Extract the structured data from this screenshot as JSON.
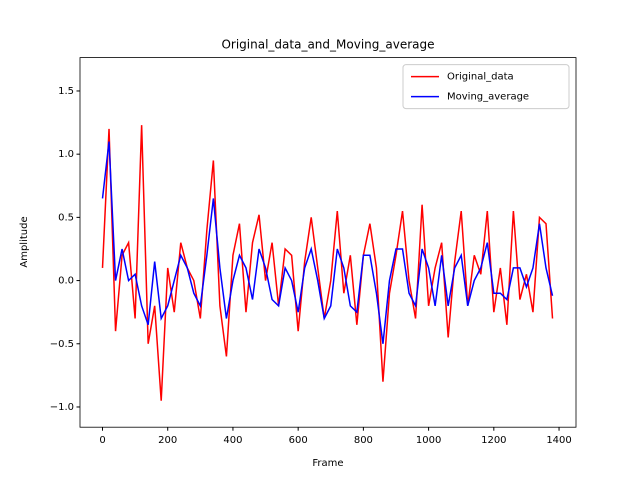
{
  "chart_data": {
    "type": "line",
    "title": "Original_data_and_Moving_average",
    "x_label": "Frame",
    "y_label": "Amplitude",
    "x": [
      0,
      20,
      40,
      60,
      80,
      100,
      120,
      140,
      160,
      180,
      200,
      220,
      240,
      260,
      280,
      300,
      320,
      340,
      360,
      380,
      400,
      420,
      440,
      460,
      480,
      500,
      520,
      540,
      560,
      580,
      600,
      620,
      640,
      660,
      680,
      700,
      720,
      740,
      760,
      780,
      800,
      820,
      840,
      860,
      880,
      900,
      920,
      940,
      960,
      980,
      1000,
      1020,
      1040,
      1060,
      1080,
      1100,
      1120,
      1140,
      1160,
      1180,
      1200,
      1220,
      1240,
      1260,
      1280,
      1300,
      1320,
      1340,
      1360,
      1380
    ],
    "series": [
      {
        "name": "Original_data",
        "color": "#ff0000",
        "values": [
          0.1,
          1.2,
          -0.4,
          0.2,
          0.3,
          -0.3,
          1.23,
          -0.5,
          -0.2,
          -0.95,
          0.1,
          -0.25,
          0.3,
          0.1,
          0.0,
          -0.3,
          0.4,
          0.95,
          -0.2,
          -0.6,
          0.2,
          0.45,
          -0.25,
          0.3,
          0.52,
          0.0,
          0.3,
          -0.2,
          0.25,
          0.2,
          -0.4,
          0.15,
          0.5,
          0.1,
          -0.3,
          0.0,
          0.55,
          -0.1,
          0.2,
          -0.35,
          0.2,
          0.45,
          0.1,
          -0.8,
          -0.1,
          0.2,
          0.55,
          0.0,
          -0.3,
          0.6,
          -0.2,
          0.1,
          0.3,
          -0.45,
          0.15,
          0.55,
          -0.2,
          0.2,
          0.05,
          0.55,
          -0.25,
          0.1,
          -0.35,
          0.55,
          -0.15,
          0.05,
          -0.25,
          0.5,
          0.45,
          -0.3
        ]
      },
      {
        "name": "Moving_average",
        "color": "#0000ff",
        "values": [
          0.65,
          1.1,
          0.0,
          0.25,
          0.0,
          0.05,
          -0.2,
          -0.35,
          0.15,
          -0.3,
          -0.2,
          0.0,
          0.2,
          0.1,
          -0.1,
          -0.2,
          0.2,
          0.65,
          0.1,
          -0.3,
          0.0,
          0.2,
          0.1,
          -0.15,
          0.25,
          0.1,
          -0.15,
          -0.2,
          0.1,
          0.0,
          -0.25,
          0.1,
          0.25,
          0.0,
          -0.3,
          -0.2,
          0.25,
          0.1,
          -0.2,
          -0.25,
          0.2,
          0.2,
          -0.1,
          -0.5,
          0.0,
          0.25,
          0.25,
          -0.1,
          -0.2,
          0.25,
          0.1,
          -0.2,
          0.2,
          -0.2,
          0.1,
          0.2,
          -0.2,
          0.0,
          0.1,
          0.3,
          -0.1,
          -0.1,
          -0.15,
          0.1,
          0.1,
          -0.05,
          0.1,
          0.45,
          0.1,
          -0.12
        ]
      }
    ],
    "xlim": [
      -69,
      1452
    ],
    "xticks": [
      0,
      200,
      400,
      600,
      800,
      1000,
      1200,
      1400
    ],
    "ylim": [
      -1.16,
      1.764
    ],
    "yticks": [
      {
        "value": -1.0,
        "label": "−1.0"
      },
      {
        "value": -0.5,
        "label": "−0.5"
      },
      {
        "value": 0.0,
        "label": "0.0"
      },
      {
        "value": 0.5,
        "label": "0.5"
      },
      {
        "value": 1.0,
        "label": "1.0"
      },
      {
        "value": 1.5,
        "label": "1.5"
      }
    ],
    "legend": "upper right"
  }
}
